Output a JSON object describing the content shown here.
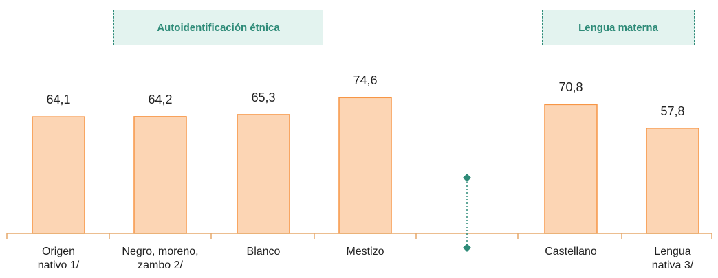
{
  "chart_data": {
    "type": "bar",
    "categories": [
      "Origen\nnativo 1/",
      "Negro, moreno,\nzambo 2/",
      "Blanco",
      "Mestizo",
      "",
      "Castellano",
      "Lengua\nnativa 3/"
    ],
    "values": [
      64.1,
      64.2,
      65.3,
      74.6,
      null,
      70.8,
      57.8
    ],
    "value_labels": [
      "64,1",
      "64,2",
      "65,3",
      "74,6",
      "",
      "70,8",
      "57,8"
    ],
    "group_labels": {
      "etnica": "Autoidentificación étnica",
      "lengua": "Lengua materna"
    },
    "ylim": [
      0,
      100
    ],
    "grid": false,
    "colors": {
      "bar_fill": "#fcd5b4",
      "bar_stroke": "#f79646",
      "accent": "#2e8b78",
      "axis": "#e6a96b"
    }
  }
}
